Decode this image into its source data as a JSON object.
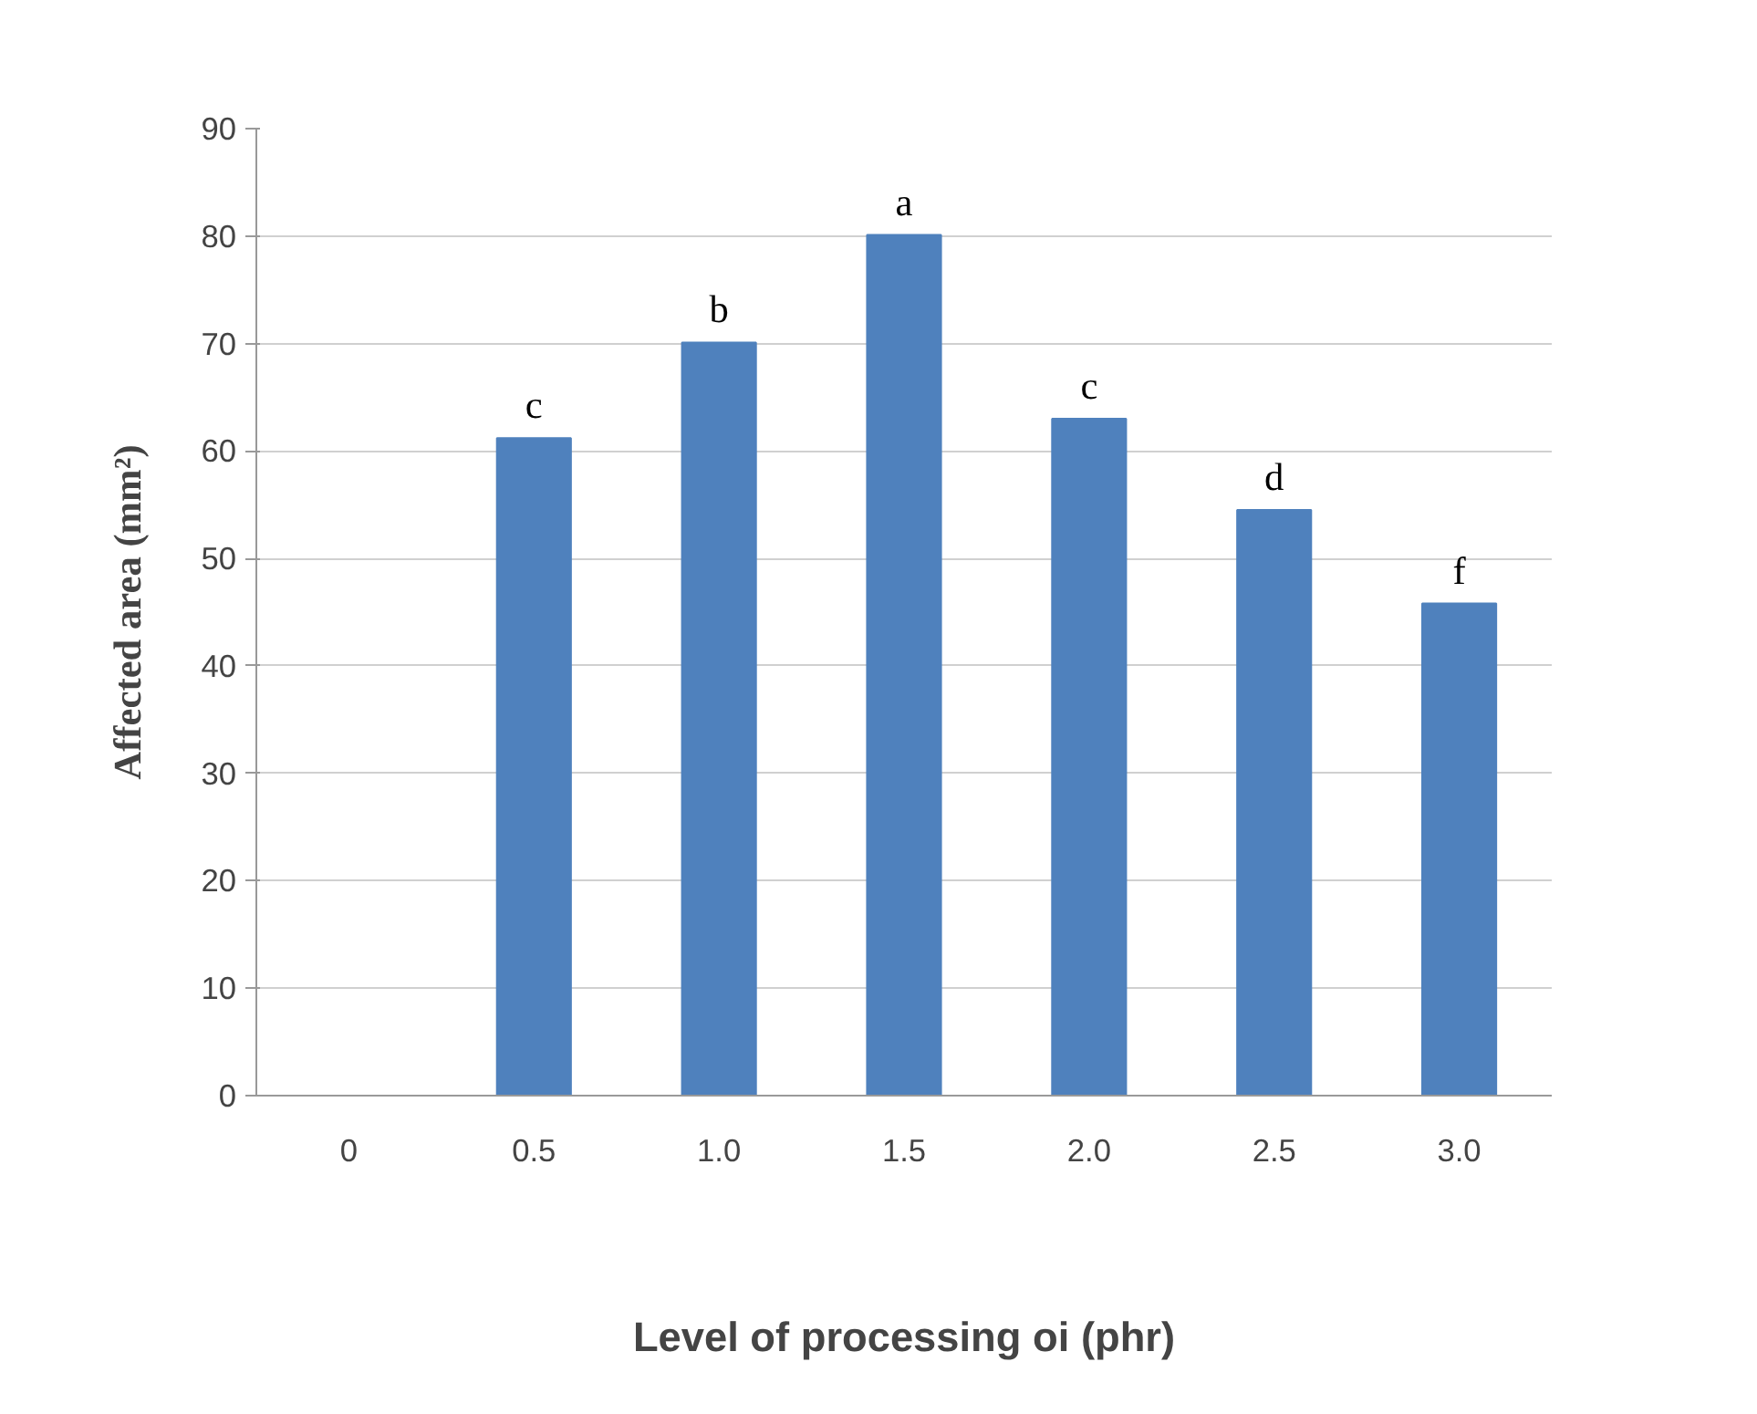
{
  "chart_data": {
    "type": "bar",
    "xlabel": "Level of processing oi (phr)",
    "ylabel": "Affected area (mm²)",
    "categories": [
      "0",
      "0.5",
      "1.0",
      "1.5",
      "2.0",
      "2.5",
      "3.0"
    ],
    "values": [
      0,
      61.2,
      70.1,
      80.1,
      63.0,
      54.5,
      45.8
    ],
    "color": "#4f81bd",
    "ylim": [
      0,
      90
    ],
    "yticks": [
      0,
      10,
      20,
      30,
      40,
      50,
      60,
      70,
      80,
      90
    ],
    "grid": "y",
    "annotations": [
      {
        "text": "c",
        "x": "0.5",
        "y": 61.2
      },
      {
        "text": "b",
        "x": "1.0",
        "y": 70.1
      },
      {
        "text": "a",
        "x": "1.5",
        "y": 80.1
      },
      {
        "text": "c",
        "x": "2.0",
        "y": 63.0
      },
      {
        "text": "d",
        "x": "2.5",
        "y": 54.5
      },
      {
        "text": "f",
        "x": "3.0",
        "y": 45.8
      }
    ]
  }
}
